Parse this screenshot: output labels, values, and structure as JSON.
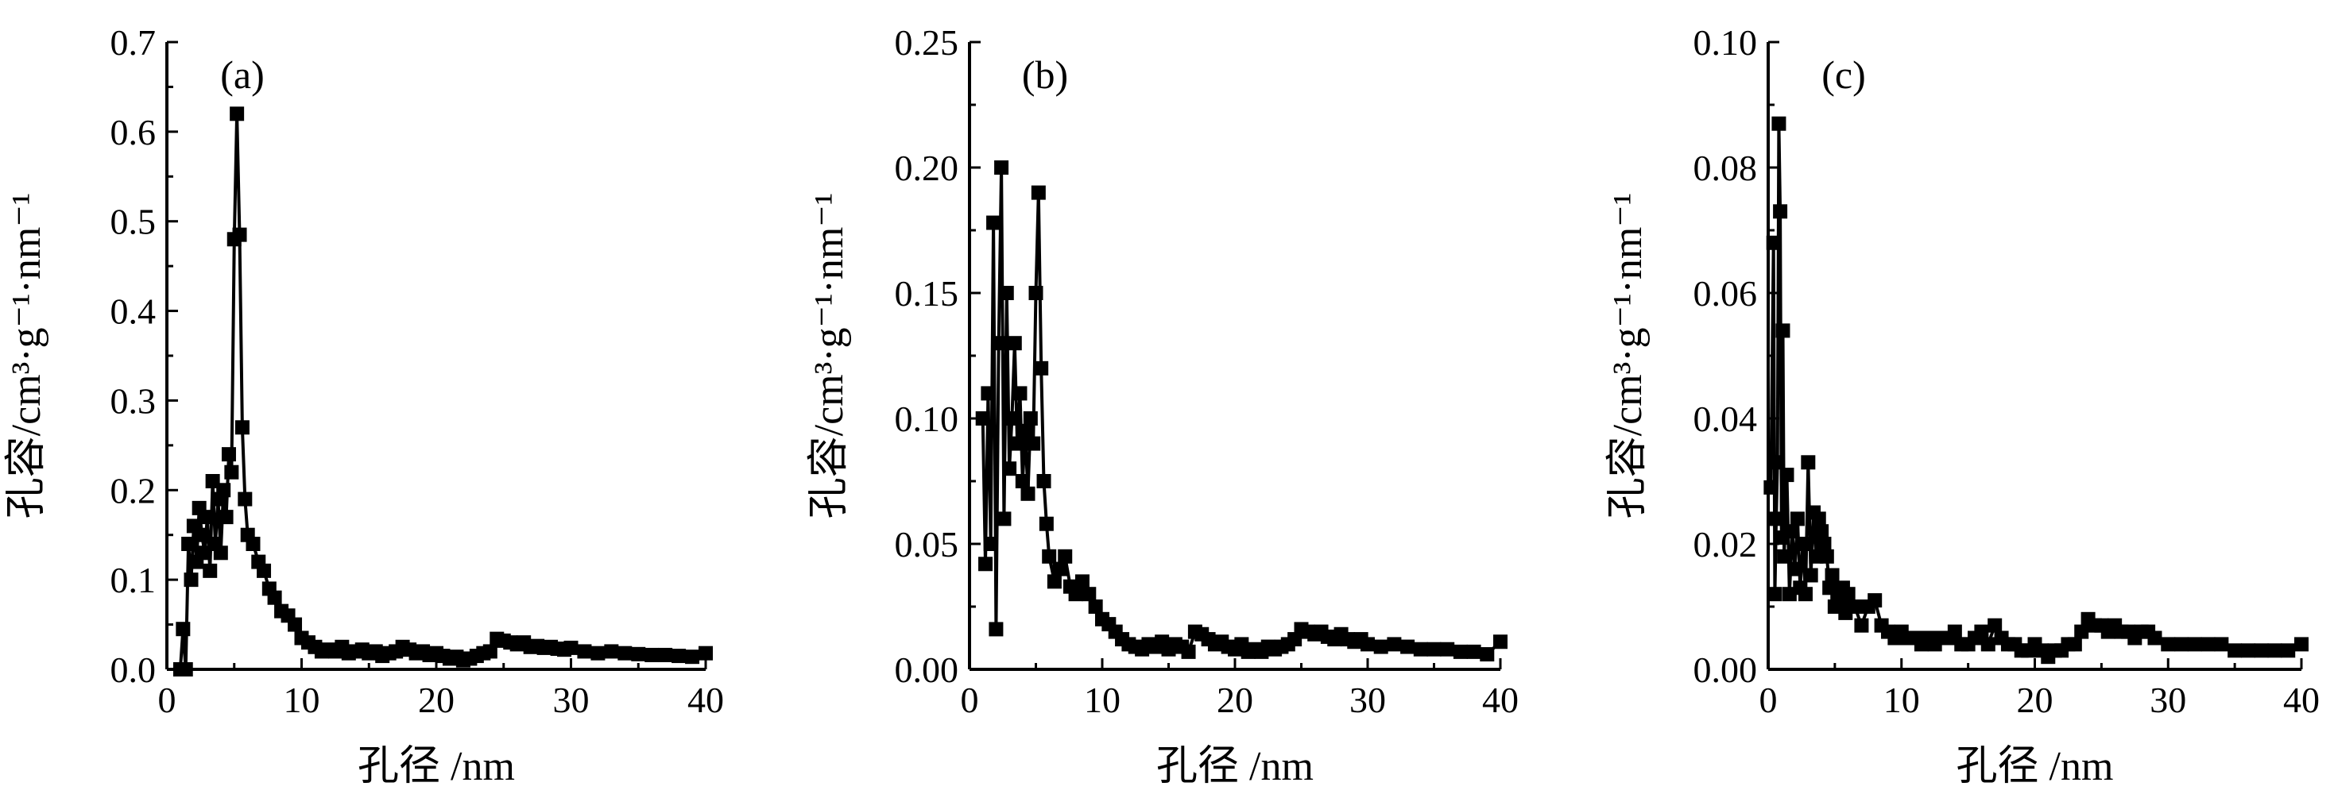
{
  "colors": {
    "marker": "#000000",
    "line": "#000000",
    "axis": "#000000",
    "background": "#ffffff"
  },
  "chart_data": [
    {
      "type": "line",
      "panel_label": "(a)",
      "xlabel": "孔径 /nm",
      "ylabel": "孔容/cm³·g⁻¹·nm⁻¹",
      "xlim": [
        0,
        40
      ],
      "ylim": [
        0,
        0.7
      ],
      "xticks": [
        "0",
        "10",
        "20",
        "30",
        "40"
      ],
      "yticks": [
        "0.0",
        "0.1",
        "0.2",
        "0.3",
        "0.4",
        "0.5",
        "0.6",
        "0.7"
      ],
      "grid": false,
      "legend": false,
      "x": [
        1.0,
        1.2,
        1.4,
        1.6,
        1.8,
        2.0,
        2.2,
        2.4,
        2.6,
        2.8,
        3.0,
        3.2,
        3.4,
        3.6,
        3.8,
        4.0,
        4.2,
        4.4,
        4.6,
        4.8,
        5.0,
        5.2,
        5.4,
        5.6,
        5.8,
        6.0,
        6.4,
        6.8,
        7.2,
        7.6,
        8.0,
        8.5,
        9.0,
        9.5,
        10.0,
        10.5,
        11.0,
        11.5,
        12.0,
        12.5,
        13.0,
        13.5,
        14.0,
        14.5,
        15.0,
        15.5,
        16.0,
        16.5,
        17.0,
        17.5,
        18.0,
        18.5,
        19.0,
        19.5,
        20.0,
        20.5,
        21.0,
        21.5,
        22.0,
        22.5,
        23.0,
        23.5,
        24.0,
        24.5,
        25.0,
        25.5,
        26.0,
        26.5,
        27.0,
        27.5,
        28.0,
        28.5,
        29.0,
        29.5,
        30.0,
        31.0,
        32.0,
        33.0,
        34.0,
        35.0,
        36.0,
        37.0,
        38.0,
        39.0,
        40.0
      ],
      "y": [
        0.0,
        0.045,
        0.0,
        0.14,
        0.1,
        0.16,
        0.12,
        0.18,
        0.15,
        0.13,
        0.17,
        0.11,
        0.21,
        0.14,
        0.19,
        0.13,
        0.2,
        0.17,
        0.24,
        0.22,
        0.48,
        0.62,
        0.485,
        0.27,
        0.19,
        0.15,
        0.14,
        0.12,
        0.11,
        0.09,
        0.08,
        0.065,
        0.06,
        0.05,
        0.035,
        0.03,
        0.025,
        0.02,
        0.022,
        0.02,
        0.025,
        0.018,
        0.02,
        0.022,
        0.018,
        0.02,
        0.015,
        0.018,
        0.02,
        0.025,
        0.022,
        0.018,
        0.02,
        0.016,
        0.018,
        0.015,
        0.012,
        0.014,
        0.01,
        0.012,
        0.015,
        0.018,
        0.02,
        0.034,
        0.032,
        0.03,
        0.028,
        0.03,
        0.025,
        0.026,
        0.024,
        0.025,
        0.023,
        0.022,
        0.024,
        0.02,
        0.018,
        0.02,
        0.018,
        0.017,
        0.016,
        0.016,
        0.015,
        0.014,
        0.018
      ]
    },
    {
      "type": "line",
      "panel_label": "(b)",
      "xlabel": "孔径 /nm",
      "ylabel": "孔容/cm³·g⁻¹·nm⁻¹",
      "xlim": [
        0,
        40
      ],
      "ylim": [
        0,
        0.25
      ],
      "xticks": [
        "0",
        "10",
        "20",
        "30",
        "40"
      ],
      "yticks": [
        "0.00",
        "0.05",
        "0.10",
        "0.15",
        "0.20",
        "0.25"
      ],
      "grid": false,
      "legend": false,
      "x": [
        1.0,
        1.2,
        1.4,
        1.6,
        1.8,
        2.0,
        2.2,
        2.4,
        2.6,
        2.8,
        3.0,
        3.2,
        3.4,
        3.6,
        3.8,
        4.0,
        4.2,
        4.4,
        4.6,
        4.8,
        5.0,
        5.2,
        5.4,
        5.6,
        5.8,
        6.0,
        6.4,
        6.8,
        7.2,
        7.6,
        8.0,
        8.5,
        9.0,
        9.5,
        10.0,
        10.5,
        11.0,
        11.5,
        12.0,
        12.5,
        13.0,
        13.5,
        14.0,
        14.5,
        15.0,
        15.5,
        16.0,
        16.5,
        17.0,
        17.5,
        18.0,
        18.5,
        19.0,
        19.5,
        20.0,
        20.5,
        21.0,
        21.5,
        22.0,
        22.5,
        23.0,
        23.5,
        24.0,
        24.5,
        25.0,
        25.5,
        26.0,
        26.5,
        27.0,
        27.5,
        28.0,
        28.5,
        29.0,
        29.5,
        30.0,
        31.0,
        32.0,
        33.0,
        34.0,
        35.0,
        36.0,
        37.0,
        38.0,
        39.0,
        40.0
      ],
      "y": [
        0.1,
        0.042,
        0.11,
        0.05,
        0.178,
        0.016,
        0.13,
        0.2,
        0.06,
        0.15,
        0.08,
        0.1,
        0.13,
        0.09,
        0.11,
        0.075,
        0.095,
        0.07,
        0.1,
        0.09,
        0.15,
        0.19,
        0.12,
        0.075,
        0.058,
        0.045,
        0.035,
        0.04,
        0.045,
        0.033,
        0.03,
        0.035,
        0.03,
        0.025,
        0.02,
        0.018,
        0.015,
        0.012,
        0.01,
        0.009,
        0.008,
        0.01,
        0.009,
        0.011,
        0.008,
        0.01,
        0.009,
        0.007,
        0.015,
        0.014,
        0.012,
        0.01,
        0.011,
        0.009,
        0.008,
        0.01,
        0.007,
        0.008,
        0.007,
        0.009,
        0.008,
        0.009,
        0.01,
        0.012,
        0.016,
        0.015,
        0.014,
        0.015,
        0.013,
        0.012,
        0.014,
        0.012,
        0.011,
        0.012,
        0.01,
        0.009,
        0.01,
        0.009,
        0.008,
        0.008,
        0.008,
        0.007,
        0.007,
        0.006,
        0.011
      ]
    },
    {
      "type": "line",
      "panel_label": "(c)",
      "xlabel": "孔径 /nm",
      "ylabel": "孔容/cm³·g⁻¹·nm⁻¹",
      "xlim": [
        0,
        40
      ],
      "ylim": [
        0,
        0.1
      ],
      "xticks": [
        "0",
        "10",
        "20",
        "30",
        "40"
      ],
      "yticks": [
        "0.00",
        "0.02",
        "0.04",
        "0.06",
        "0.08",
        "0.10"
      ],
      "grid": false,
      "legend": false,
      "x": [
        0.2,
        0.4,
        0.5,
        0.6,
        0.7,
        0.8,
        0.9,
        1.0,
        1.1,
        1.2,
        1.4,
        1.6,
        1.8,
        2.0,
        2.2,
        2.4,
        2.6,
        2.8,
        3.0,
        3.2,
        3.4,
        3.6,
        3.8,
        4.0,
        4.2,
        4.4,
        4.6,
        4.8,
        5.0,
        5.2,
        5.4,
        5.6,
        5.8,
        6.0,
        6.5,
        7.0,
        7.5,
        8.0,
        8.5,
        9.0,
        9.5,
        10.0,
        10.5,
        11.0,
        11.5,
        12.0,
        12.5,
        13.0,
        13.5,
        14.0,
        14.5,
        15.0,
        15.5,
        16.0,
        16.5,
        17.0,
        17.5,
        18.0,
        18.5,
        19.0,
        19.5,
        20.0,
        20.5,
        21.0,
        21.5,
        22.0,
        22.5,
        23.0,
        23.5,
        24.0,
        24.5,
        25.0,
        25.5,
        26.0,
        26.5,
        27.0,
        27.5,
        28.0,
        28.5,
        29.0,
        30.0,
        31.0,
        32.0,
        33.0,
        34.0,
        35.0,
        36.0,
        37.0,
        38.0,
        39.0,
        40.0
      ],
      "y": [
        0.029,
        0.068,
        0.012,
        0.024,
        0.033,
        0.087,
        0.073,
        0.021,
        0.054,
        0.018,
        0.031,
        0.012,
        0.022,
        0.016,
        0.024,
        0.013,
        0.02,
        0.012,
        0.033,
        0.015,
        0.025,
        0.018,
        0.024,
        0.022,
        0.02,
        0.018,
        0.013,
        0.015,
        0.01,
        0.012,
        0.011,
        0.013,
        0.009,
        0.012,
        0.01,
        0.007,
        0.01,
        0.011,
        0.007,
        0.006,
        0.005,
        0.006,
        0.005,
        0.005,
        0.004,
        0.005,
        0.004,
        0.005,
        0.005,
        0.006,
        0.004,
        0.004,
        0.005,
        0.006,
        0.004,
        0.007,
        0.005,
        0.004,
        0.004,
        0.003,
        0.003,
        0.004,
        0.003,
        0.002,
        0.003,
        0.003,
        0.004,
        0.004,
        0.006,
        0.008,
        0.007,
        0.007,
        0.006,
        0.007,
        0.006,
        0.006,
        0.005,
        0.006,
        0.006,
        0.005,
        0.004,
        0.004,
        0.004,
        0.004,
        0.004,
        0.003,
        0.003,
        0.003,
        0.003,
        0.003,
        0.004
      ]
    }
  ]
}
